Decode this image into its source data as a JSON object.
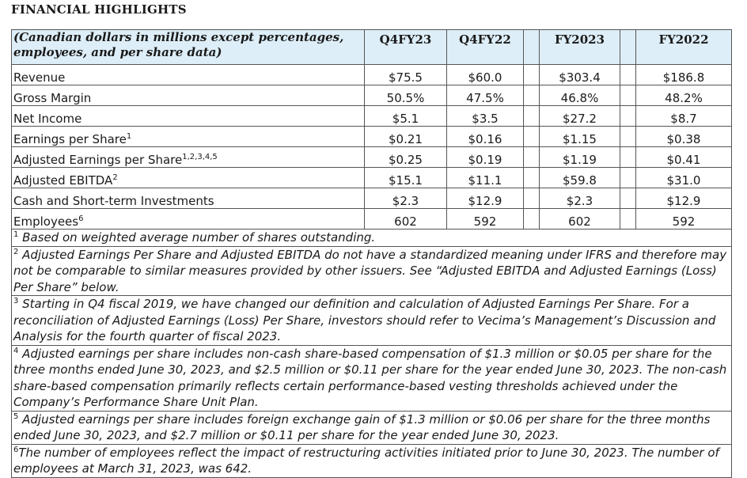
{
  "title": "FINANCIAL HIGHLIGHTS",
  "table": {
    "header_label": "(Canadian dollars in millions except percentages, employees, and per share data)",
    "columns": [
      "Q4FY23",
      "Q4FY22",
      "FY2023",
      "FY2022"
    ],
    "rows": [
      {
        "label": "Revenue",
        "sup": "",
        "values": [
          "$75.5",
          "$60.0",
          "$303.4",
          "$186.8"
        ]
      },
      {
        "label": "Gross Margin",
        "sup": "",
        "values": [
          "50.5%",
          "47.5%",
          "46.8%",
          "48.2%"
        ]
      },
      {
        "label": "Net Income",
        "sup": "",
        "values": [
          "$5.1",
          "$3.5",
          "$27.2",
          "$8.7"
        ]
      },
      {
        "label": "Earnings per Share",
        "sup": "1",
        "values": [
          "$0.21",
          "$0.16",
          "$1.15",
          "$0.38"
        ]
      },
      {
        "label": "Adjusted Earnings per Share",
        "sup": "1,2,3,4,5",
        "values": [
          "$0.25",
          "$0.19",
          "$1.19",
          "$0.41"
        ]
      },
      {
        "label": "Adjusted EBITDA",
        "sup": "2",
        "values": [
          "$15.1",
          "$11.1",
          "$59.8",
          "$31.0"
        ]
      },
      {
        "label": "Cash and Short-term Investments",
        "sup": "",
        "values": [
          "$2.3",
          "$12.9",
          "$2.3",
          "$12.9"
        ]
      },
      {
        "label": "Employees",
        "sup": "6",
        "values": [
          "602",
          "592",
          "602",
          "592"
        ]
      }
    ]
  },
  "footnotes": [
    {
      "mark": "1",
      "text": " Based on weighted average number of shares outstanding."
    },
    {
      "mark": "2",
      "text": " Adjusted Earnings Per Share and Adjusted EBITDA do not have a standardized meaning under IFRS and therefore may not be comparable to similar measures provided by other issuers. See “Adjusted EBITDA and Adjusted Earnings (Loss) Per Share” below."
    },
    {
      "mark": "3",
      "text": " Starting in Q4 fiscal 2019, we have changed our definition and calculation of Adjusted Earnings Per Share. For a reconciliation of Adjusted Earnings (Loss) Per Share, investors should refer to Vecima’s Management’s Discussion and Analysis for the fourth quarter of fiscal 2023."
    },
    {
      "mark": "4",
      "text": " Adjusted earnings per share includes non-cash share-based compensation of $1.3 million or $0.05 per share for the three months ended June 30, 2023, and $2.5 million or $0.11 per share for the year ended June 30, 2023. The non-cash share-based compensation primarily reflects certain performance-based vesting thresholds achieved under the Company’s Performance Share Unit Plan."
    },
    {
      "mark": "5",
      "text": " Adjusted earnings per share includes foreign exchange gain of $1.3 million or $0.06 per share for the three months ended June 30, 2023, and $2.7 million or $0.11 per share for the year ended June 30, 2023."
    },
    {
      "mark": "6",
      "text": "The number of employees reflect the impact of restructuring activities initiated prior to June 30, 2023. The number of employees at March 31, 2023, was 642."
    }
  ]
}
